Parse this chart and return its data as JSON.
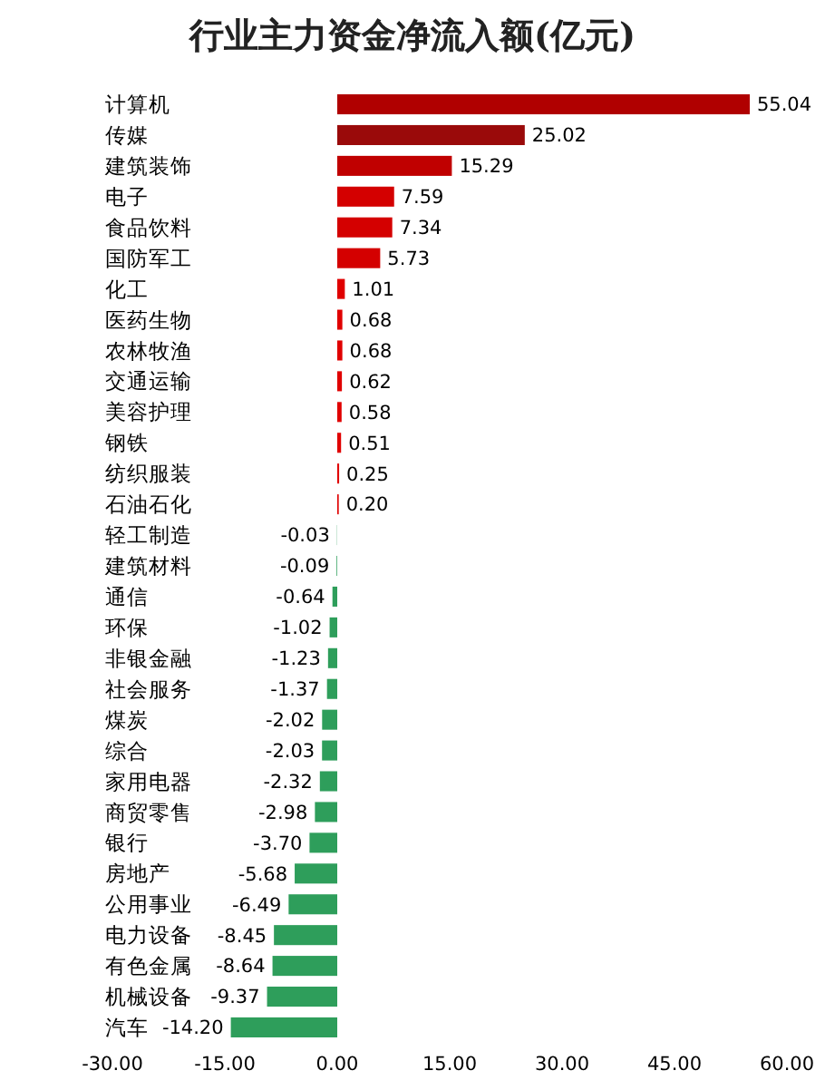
{
  "chart_data": {
    "type": "bar",
    "orientation": "horizontal",
    "title": "行业主力资金净流入额(亿元)",
    "categories": [
      "计算机",
      "传媒",
      "建筑装饰",
      "电子",
      "食品饮料",
      "国防军工",
      "化工",
      "医药生物",
      "农林牧渔",
      "交通运输",
      "美容护理",
      "钢铁",
      "纺织服装",
      "石油石化",
      "轻工制造",
      "建筑材料",
      "通信",
      "环保",
      "非银金融",
      "社会服务",
      "煤炭",
      "综合",
      "家用电器",
      "商贸零售",
      "银行",
      "房地产",
      "公用事业",
      "电力设备",
      "有色金属",
      "机械设备",
      "汽车"
    ],
    "values": [
      55.04,
      25.02,
      15.29,
      7.59,
      7.34,
      5.73,
      1.01,
      0.68,
      0.68,
      0.62,
      0.58,
      0.51,
      0.25,
      0.2,
      -0.03,
      -0.09,
      -0.64,
      -1.02,
      -1.23,
      -1.37,
      -2.02,
      -2.03,
      -2.32,
      -2.98,
      -3.7,
      -5.68,
      -6.49,
      -8.45,
      -8.64,
      -9.37,
      -14.2
    ],
    "value_labels": [
      "55.04",
      "25.02",
      "15.29",
      "7.59",
      "7.34",
      "5.73",
      "1.01",
      "0.68",
      "0.68",
      "0.62",
      "0.58",
      "0.51",
      "0.25",
      "0.20",
      "-0.03",
      "-0.09",
      "-0.64",
      "-1.02",
      "-1.23",
      "-1.37",
      "-2.02",
      "-2.03",
      "-2.32",
      "-2.98",
      "-3.70",
      "-5.68",
      "-6.49",
      "-8.45",
      "-8.64",
      "-9.37",
      "-14.20"
    ],
    "colors": [
      "#b00000",
      "#9a0a0a",
      "#c00000",
      "#d40000",
      "#d40000",
      "#d40000",
      "#e00000",
      "#e00000",
      "#e00000",
      "#e00000",
      "#e00000",
      "#e00000",
      "#e00000",
      "#e00000",
      "#2e9e5b",
      "#2e9e5b",
      "#2e9e5b",
      "#2e9e5b",
      "#2e9e5b",
      "#2e9e5b",
      "#2e9e5b",
      "#2e9e5b",
      "#2e9e5b",
      "#2e9e5b",
      "#2e9e5b",
      "#2e9e5b",
      "#2e9e5b",
      "#2e9e5b",
      "#2e9e5b",
      "#2e9e5b",
      "#2e9e5b"
    ],
    "xlim": [
      -30,
      60
    ],
    "xticks": [
      {
        "value": -30,
        "label": "-30.00"
      },
      {
        "value": -15,
        "label": "-15.00"
      },
      {
        "value": 0,
        "label": "0.00"
      },
      {
        "value": 15,
        "label": "15.00"
      },
      {
        "value": 30,
        "label": "30.00"
      },
      {
        "value": 45,
        "label": "45.00"
      },
      {
        "value": 60,
        "label": "60.00"
      }
    ]
  }
}
